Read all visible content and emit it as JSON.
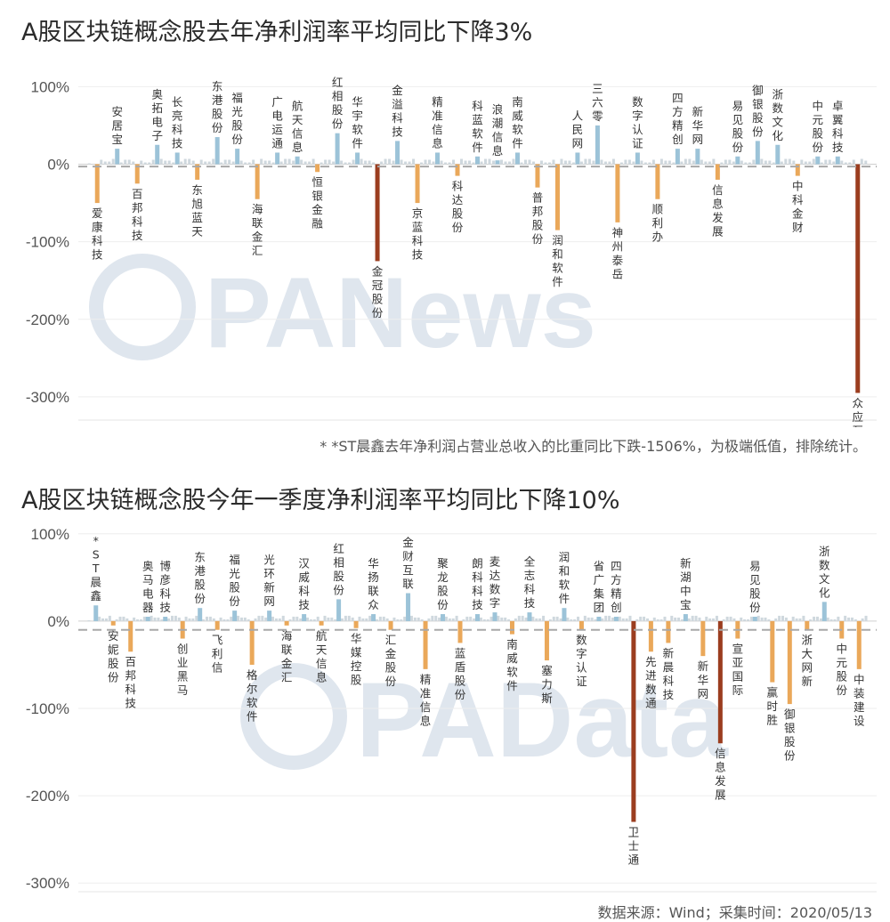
{
  "chart_data": [
    {
      "type": "bar",
      "title": "A股区块链概念股去年净利润率平均同比下降3%",
      "ylim": [
        -330,
        120
      ],
      "yticks": [
        100,
        0,
        -100,
        -200,
        -300
      ],
      "tick_labels": [
        "100%",
        "0%",
        "-100%",
        "-200%",
        "-300%"
      ],
      "average_line": -3,
      "colors": {
        "positive": "#9cc3d8",
        "negative": "#eaa85a",
        "extreme": "#9b3d1f",
        "minor": "#cfd8de"
      },
      "footnote": "* *ST晨鑫去年净利润占营业总收入的比重同比下跌-1506%，为极端低值，排除统计。",
      "watermark": "PANews",
      "bars": [
        {
          "label": "爱康科技",
          "value": -50
        },
        {
          "label": "安居宝",
          "value": 20
        },
        {
          "label": "百邦科技",
          "value": -25
        },
        {
          "label": "奥拓电子",
          "value": 25
        },
        {
          "label": "长亮科技",
          "value": 15
        },
        {
          "label": "东旭蓝天",
          "value": -20
        },
        {
          "label": "东港股份",
          "value": 35
        },
        {
          "label": "福光股份",
          "value": 20
        },
        {
          "label": "海联金汇",
          "value": -45
        },
        {
          "label": "广电运通",
          "value": 15
        },
        {
          "label": "航天信息",
          "value": 10
        },
        {
          "label": "恒银金融",
          "value": -10
        },
        {
          "label": "红相股份",
          "value": 40
        },
        {
          "label": "华宇软件",
          "value": 15
        },
        {
          "label": "金冠股份",
          "value": -125
        },
        {
          "label": "金溢科技",
          "value": 30
        },
        {
          "label": "京蓝科技",
          "value": -50
        },
        {
          "label": "精准信息",
          "value": 15
        },
        {
          "label": "科达股份",
          "value": -15
        },
        {
          "label": "科蓝软件",
          "value": 10
        },
        {
          "label": "浪潮信息",
          "value": 5
        },
        {
          "label": "南威软件",
          "value": 15
        },
        {
          "label": "普邦股份",
          "value": -30
        },
        {
          "label": "润和软件",
          "value": -85
        },
        {
          "label": "人民网",
          "value": 15
        },
        {
          "label": "三六零",
          "value": 50
        },
        {
          "label": "神州泰岳",
          "value": -75
        },
        {
          "label": "数字认证",
          "value": 15
        },
        {
          "label": "顺利办",
          "value": -45
        },
        {
          "label": "四方精创",
          "value": 20
        },
        {
          "label": "新华网",
          "value": 20
        },
        {
          "label": "信息发展",
          "value": -20
        },
        {
          "label": "易见股份",
          "value": 10
        },
        {
          "label": "御银股份",
          "value": 30
        },
        {
          "label": "浙数文化",
          "value": 25
        },
        {
          "label": "中科金财",
          "value": -15
        },
        {
          "label": "中元股份",
          "value": 10
        },
        {
          "label": "卓翼科技",
          "value": 10
        },
        {
          "label": "众应互联",
          "value": -295
        }
      ]
    },
    {
      "type": "bar",
      "title": "A股区块链概念股今年一季度净利润率平均同比下降10%",
      "ylim": [
        -310,
        110
      ],
      "yticks": [
        100,
        0,
        -100,
        -200,
        -300
      ],
      "tick_labels": [
        "100%",
        "0%",
        "-100%",
        "-200%",
        "-300%"
      ],
      "average_line": -10,
      "colors": {
        "positive": "#9cc3d8",
        "negative": "#eaa85a",
        "extreme": "#9b3d1f",
        "minor": "#cfd8de"
      },
      "watermark": "PAData",
      "source": "数据来源：Wind；采集时间：2020/05/13",
      "bars": [
        {
          "label": "*ST晨鑫",
          "value": 18
        },
        {
          "label": "安妮股份",
          "value": -5
        },
        {
          "label": "百邦科技",
          "value": -35
        },
        {
          "label": "奥马电器",
          "value": 5
        },
        {
          "label": "博彦科技",
          "value": 5
        },
        {
          "label": "创业黑马",
          "value": -20
        },
        {
          "label": "东港股份",
          "value": 15
        },
        {
          "label": "飞利信",
          "value": -10
        },
        {
          "label": "福光股份",
          "value": 12
        },
        {
          "label": "格尔软件",
          "value": -50
        },
        {
          "label": "光环新网",
          "value": 12
        },
        {
          "label": "海联金汇",
          "value": -5
        },
        {
          "label": "汉威科技",
          "value": 8
        },
        {
          "label": "航天信息",
          "value": -5
        },
        {
          "label": "红相股份",
          "value": 25
        },
        {
          "label": "华媒控股",
          "value": -8
        },
        {
          "label": "华扬联众",
          "value": 8
        },
        {
          "label": "汇金股份",
          "value": -10
        },
        {
          "label": "金财互联",
          "value": 32
        },
        {
          "label": "精准信息",
          "value": -55
        },
        {
          "label": "聚龙股份",
          "value": 8
        },
        {
          "label": "蓝盾股份",
          "value": -25
        },
        {
          "label": "朗科科技",
          "value": 8
        },
        {
          "label": "麦达数字",
          "value": 10
        },
        {
          "label": "南威软件",
          "value": -15
        },
        {
          "label": "全志科技",
          "value": 10
        },
        {
          "label": "塞力斯",
          "value": -45
        },
        {
          "label": "润和软件",
          "value": 15
        },
        {
          "label": "数字认证",
          "value": -10
        },
        {
          "label": "省广集团",
          "value": 5
        },
        {
          "label": "四方精创",
          "value": 5
        },
        {
          "label": "卫士通",
          "value": -230
        },
        {
          "label": "先进数通",
          "value": -35
        },
        {
          "label": "新晨科技",
          "value": -25
        },
        {
          "label": "新湖中宝",
          "value": 8
        },
        {
          "label": "新华网",
          "value": -40
        },
        {
          "label": "信息发展",
          "value": -140
        },
        {
          "label": "宣亚国际",
          "value": -20
        },
        {
          "label": "易见股份",
          "value": 5
        },
        {
          "label": "赢时胜",
          "value": -70
        },
        {
          "label": "御银股份",
          "value": -95
        },
        {
          "label": "浙大网新",
          "value": -10
        },
        {
          "label": "浙数文化",
          "value": 22
        },
        {
          "label": "中元股份",
          "value": -20
        },
        {
          "label": "中装建设",
          "value": -55
        }
      ]
    }
  ]
}
